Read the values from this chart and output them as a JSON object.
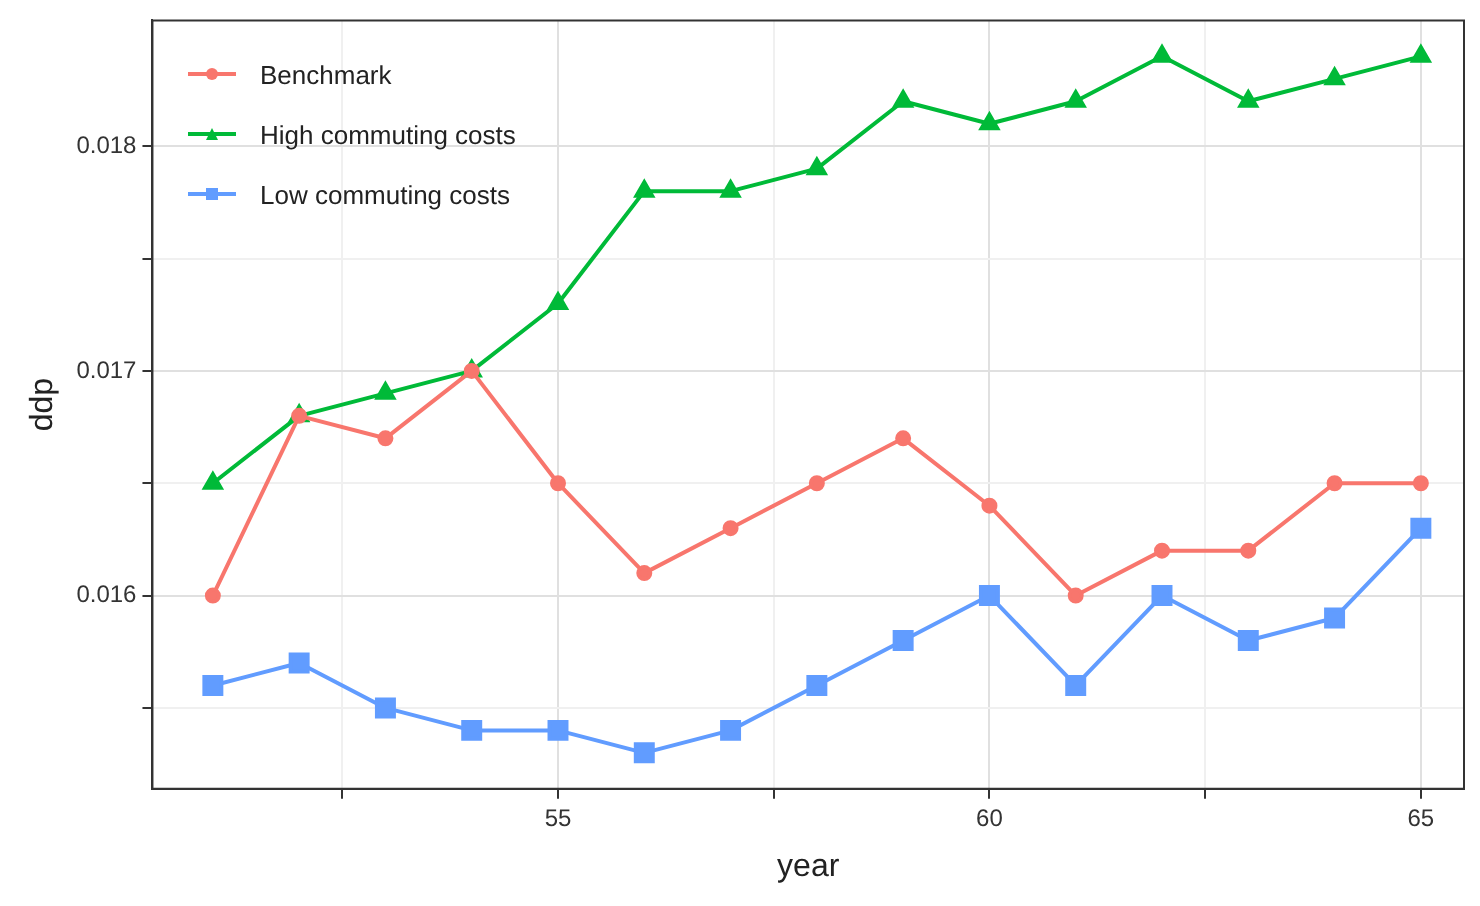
{
  "chart_data": {
    "type": "line",
    "xlabel": "year",
    "ylabel": "ddp",
    "x": [
      51,
      52,
      53,
      54,
      55,
      56,
      57,
      58,
      59,
      60,
      61,
      62,
      63,
      64,
      65
    ],
    "xlim": [
      50.3,
      65.5
    ],
    "xticks": [
      {
        "value": 52.5,
        "label": null
      },
      55,
      {
        "value": 57.5,
        "label": null
      },
      60,
      {
        "value": 62.5,
        "label": null
      },
      65
    ],
    "ylim": [
      0.01514,
      0.01856
    ],
    "yticks": [
      {
        "value": 0.0155,
        "label": null
      },
      0.016,
      {
        "value": 0.0165,
        "label": null
      },
      0.017,
      {
        "value": 0.0175,
        "label": null
      },
      0.018
    ],
    "grid": true,
    "legend": "top left",
    "series": [
      {
        "name": "Benchmark",
        "color": "#f8766d",
        "marker": "circle",
        "values": [
          0.016,
          0.0168,
          0.0167,
          0.017,
          0.0165,
          0.0161,
          0.0163,
          0.0165,
          0.0167,
          0.0164,
          0.016,
          0.0162,
          0.0162,
          0.0165,
          0.0165
        ]
      },
      {
        "name": "High commuting costs",
        "color": "#00ba38",
        "marker": "triangle",
        "values": [
          0.0165,
          0.0168,
          0.0169,
          0.017,
          0.0173,
          0.0178,
          0.0178,
          0.0179,
          0.0182,
          0.0181,
          0.0182,
          0.0184,
          0.0182,
          0.0183,
          0.0184
        ]
      },
      {
        "name": "Low commuting costs",
        "color": "#619cff",
        "marker": "square",
        "values": [
          0.0156,
          0.0157,
          0.0155,
          0.0154,
          0.0154,
          0.0153,
          0.0154,
          0.0156,
          0.0158,
          0.016,
          0.0156,
          0.016,
          0.0158,
          0.0159,
          0.0163
        ]
      }
    ]
  }
}
